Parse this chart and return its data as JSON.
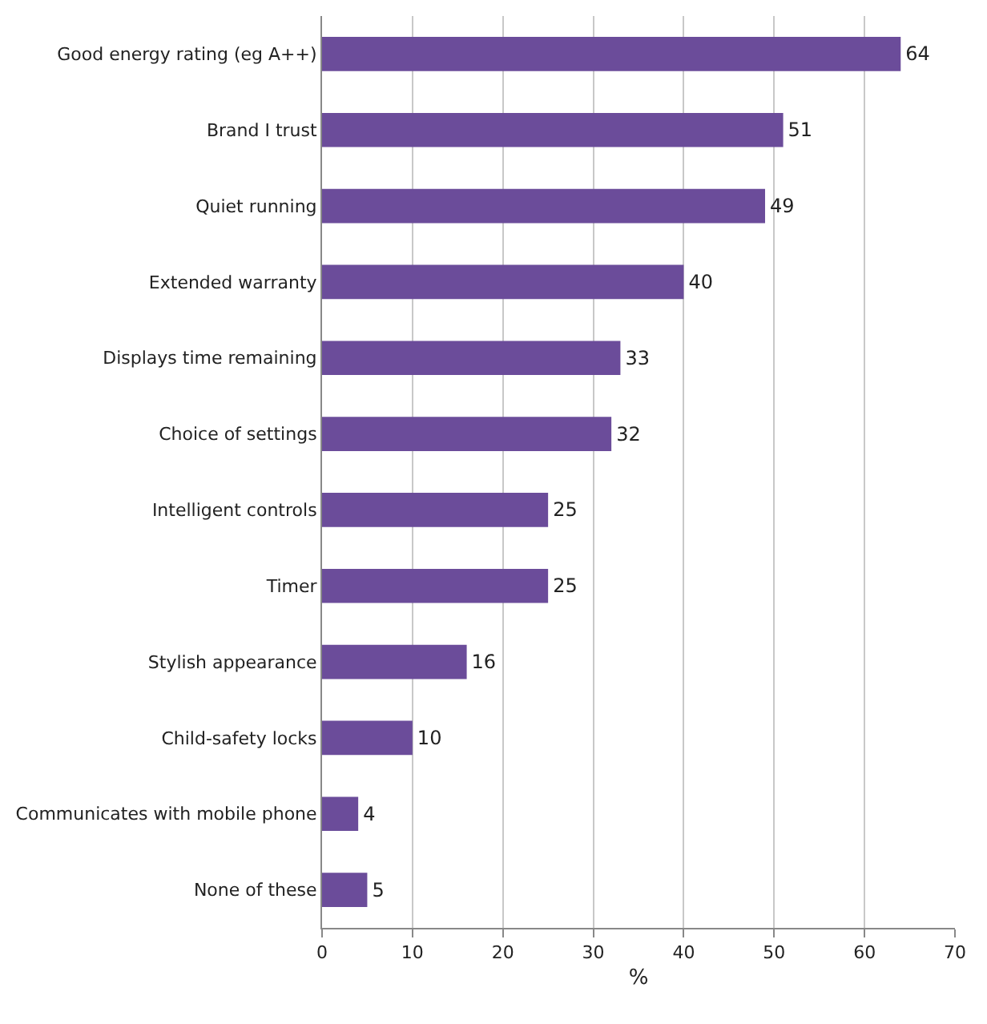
{
  "chart_data": {
    "type": "bar",
    "orientation": "horizontal",
    "xlabel": "%",
    "categories": [
      "Good energy rating (eg A++)",
      "Brand I trust",
      "Quiet running",
      "Extended warranty",
      "Displays time remaining",
      "Choice of settings",
      "Intelligent controls",
      "Timer",
      "Stylish appearance",
      "Child-safety locks",
      "Communicates with mobile phone",
      "None of these"
    ],
    "values": [
      64,
      51,
      49,
      40,
      33,
      32,
      25,
      25,
      16,
      10,
      4,
      5
    ],
    "color": "#6b4c9a",
    "xlim": [
      0,
      70
    ],
    "xticks": [
      0,
      10,
      20,
      30,
      40,
      50,
      60,
      70
    ],
    "grid": "x",
    "data_labels": true
  }
}
